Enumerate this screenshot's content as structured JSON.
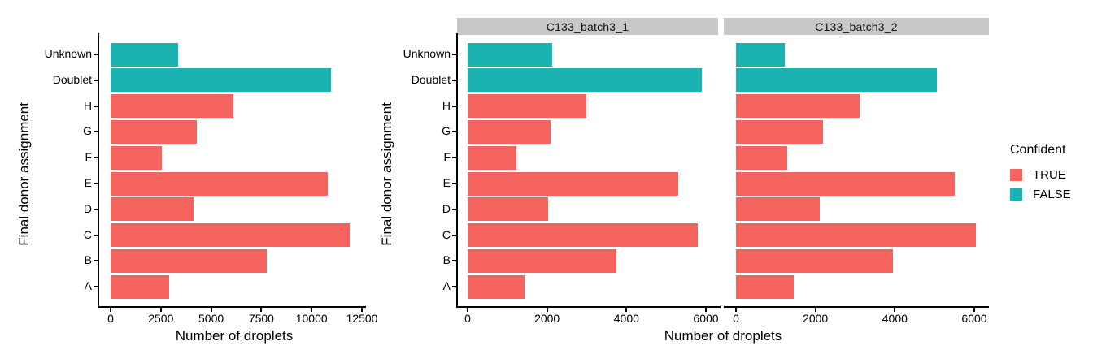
{
  "colors": {
    "confident_true": "#F4635E",
    "confident_false": "#1BB3B2",
    "strip_bg": "#C8C8C8",
    "axis": "#000000"
  },
  "legend": {
    "title": "Confident",
    "items": [
      {
        "label": "TRUE",
        "color_key": "confident_true"
      },
      {
        "label": "FALSE",
        "color_key": "confident_false"
      }
    ]
  },
  "chart_data": [
    {
      "type": "bar",
      "orientation": "horizontal",
      "title": "",
      "xlabel": "Number of droplets",
      "ylabel": "Final donor assignment",
      "legend_position": "right",
      "grid": false,
      "categories": [
        "Unknown",
        "Doublet",
        "H",
        "G",
        "F",
        "E",
        "D",
        "C",
        "B",
        "A"
      ],
      "confident": [
        false,
        false,
        true,
        true,
        true,
        true,
        true,
        true,
        true,
        true
      ],
      "values": [
        3350,
        10950,
        6100,
        4280,
        2530,
        10800,
        4130,
        11900,
        7750,
        2900
      ],
      "xlim": [
        0,
        12500
      ],
      "xticks": [
        0,
        2500,
        5000,
        7500,
        10000,
        12500
      ]
    },
    {
      "type": "bar",
      "orientation": "horizontal",
      "title": "C133_batch3_1",
      "xlabel": "Number of droplets",
      "ylabel": "Final donor assignment",
      "legend_position": "right",
      "grid": false,
      "categories": [
        "Unknown",
        "Doublet",
        "H",
        "G",
        "F",
        "E",
        "D",
        "C",
        "B",
        "A"
      ],
      "confident": [
        false,
        false,
        true,
        true,
        true,
        true,
        true,
        true,
        true,
        true
      ],
      "values": [
        2130,
        5900,
        2980,
        2080,
        1230,
        5300,
        2030,
        5800,
        3740,
        1440
      ],
      "xlim": [
        0,
        6000
      ],
      "xticks": [
        0,
        2000,
        4000,
        6000
      ]
    },
    {
      "type": "bar",
      "orientation": "horizontal",
      "title": "C133_batch3_2",
      "xlabel": "Number of droplets",
      "ylabel": "Final donor assignment",
      "legend_position": "right",
      "grid": false,
      "categories": [
        "Unknown",
        "Doublet",
        "H",
        "G",
        "F",
        "E",
        "D",
        "C",
        "B",
        "A"
      ],
      "confident": [
        false,
        false,
        true,
        true,
        true,
        true,
        true,
        true,
        true,
        true
      ],
      "values": [
        1220,
        5050,
        3120,
        2200,
        1300,
        5500,
        2100,
        6050,
        3960,
        1460
      ],
      "xlim": [
        0,
        6000
      ],
      "xticks": [
        0,
        2000,
        4000,
        6000
      ]
    }
  ]
}
